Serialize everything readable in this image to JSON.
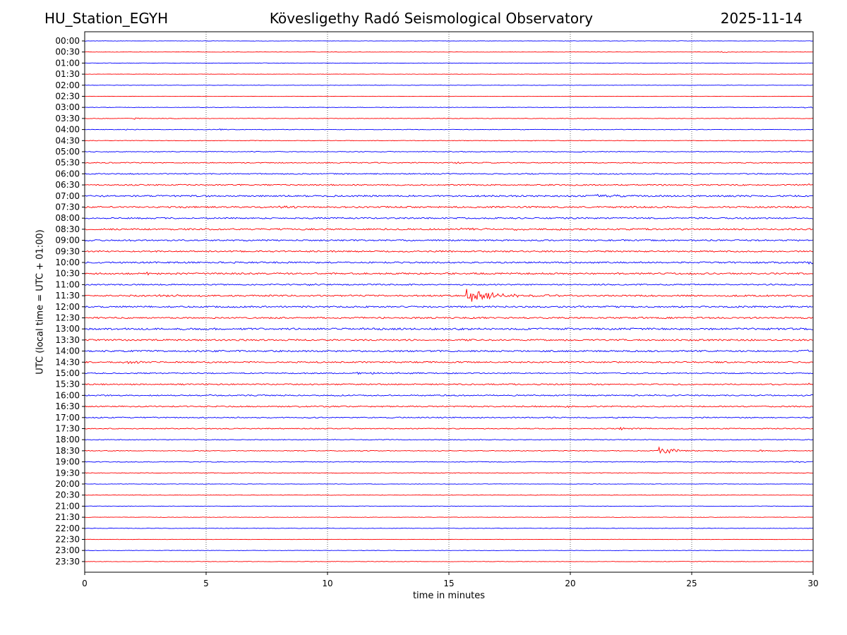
{
  "header": {
    "station": "HU_Station_EGYH",
    "observatory": "Kövesligethy Radó Seismological Observatory",
    "date": "2025-11-14"
  },
  "chart_data": {
    "type": "line",
    "title": "Kövesligethy Radó Seismological Observatory",
    "xlabel": "time in minutes",
    "ylabel": "UTC (local time = UTC + 01:00)",
    "xlim": [
      0,
      30
    ],
    "xticks": [
      0,
      5,
      10,
      15,
      20,
      25,
      30
    ],
    "grid": "vertical dotted at 5-minute ticks",
    "colors": {
      "even_row": "#0000ff",
      "odd_row": "#ff0000",
      "grid": "#000000"
    },
    "rows": [
      {
        "label": "00:00",
        "noise": 0.25,
        "events": []
      },
      {
        "label": "00:30",
        "noise": 0.22,
        "events": [
          {
            "t": 26.2,
            "amp": 1.2,
            "dur": 0.4
          }
        ]
      },
      {
        "label": "01:00",
        "noise": 0.25,
        "events": []
      },
      {
        "label": "01:30",
        "noise": 0.22,
        "events": []
      },
      {
        "label": "02:00",
        "noise": 0.25,
        "events": []
      },
      {
        "label": "02:30",
        "noise": 0.22,
        "events": []
      },
      {
        "label": "03:00",
        "noise": 0.3,
        "events": [
          {
            "t": 29.6,
            "amp": 1.6,
            "dur": 0.5
          }
        ]
      },
      {
        "label": "03:30",
        "noise": 0.35,
        "events": [
          {
            "t": 2.0,
            "amp": 1.4,
            "dur": 0.6
          }
        ]
      },
      {
        "label": "04:00",
        "noise": 0.35,
        "events": [
          {
            "t": 1.6,
            "amp": 1.3,
            "dur": 0.5
          },
          {
            "t": 5.5,
            "amp": 1.0,
            "dur": 0.4
          }
        ]
      },
      {
        "label": "04:30",
        "noise": 0.35,
        "events": []
      },
      {
        "label": "05:00",
        "noise": 0.45,
        "events": [
          {
            "t": 29.0,
            "amp": 1.0,
            "dur": 0.4
          }
        ]
      },
      {
        "label": "05:30",
        "noise": 0.6,
        "events": [
          {
            "t": 15.2,
            "amp": 1.4,
            "dur": 0.5
          }
        ]
      },
      {
        "label": "06:00",
        "noise": 0.7,
        "events": []
      },
      {
        "label": "06:30",
        "noise": 0.8,
        "events": [
          {
            "t": 29.8,
            "amp": 1.5,
            "dur": 0.3
          }
        ]
      },
      {
        "label": "07:00",
        "noise": 1.0,
        "events": [
          {
            "t": 21.0,
            "amp": 1.8,
            "dur": 0.8
          }
        ]
      },
      {
        "label": "07:30",
        "noise": 1.0,
        "events": [
          {
            "t": 7.8,
            "amp": 2.0,
            "dur": 0.6
          }
        ]
      },
      {
        "label": "08:00",
        "noise": 0.9,
        "events": []
      },
      {
        "label": "08:30",
        "noise": 1.0,
        "events": [
          {
            "t": 15.5,
            "amp": 1.6,
            "dur": 2.0
          }
        ]
      },
      {
        "label": "09:00",
        "noise": 0.9,
        "events": []
      },
      {
        "label": "09:30",
        "noise": 0.9,
        "events": []
      },
      {
        "label": "10:00",
        "noise": 1.0,
        "events": [
          {
            "t": 29.8,
            "amp": 1.5,
            "dur": 0.4
          }
        ]
      },
      {
        "label": "10:30",
        "noise": 1.0,
        "events": [
          {
            "t": 2.5,
            "amp": 1.8,
            "dur": 0.5
          }
        ]
      },
      {
        "label": "11:00",
        "noise": 0.8,
        "events": [
          {
            "t": 9.2,
            "amp": 2.0,
            "dur": 0.4
          }
        ]
      },
      {
        "label": "11:30",
        "noise": 1.0,
        "events": [
          {
            "t": 15.7,
            "amp": 9.0,
            "dur": 1.3
          },
          {
            "t": 3.0,
            "amp": 1.4,
            "dur": 1.5
          }
        ]
      },
      {
        "label": "12:00",
        "noise": 1.0,
        "events": []
      },
      {
        "label": "12:30",
        "noise": 1.0,
        "events": []
      },
      {
        "label": "13:00",
        "noise": 1.2,
        "events": [
          {
            "t": 22.3,
            "amp": 1.8,
            "dur": 0.5
          }
        ]
      },
      {
        "label": "13:30",
        "noise": 1.0,
        "events": []
      },
      {
        "label": "14:00",
        "noise": 1.0,
        "events": [
          {
            "t": 29.5,
            "amp": 2.5,
            "dur": 0.6
          }
        ]
      },
      {
        "label": "14:30",
        "noise": 0.9,
        "events": [
          {
            "t": 1.5,
            "amp": 1.5,
            "dur": 1.0
          }
        ]
      },
      {
        "label": "15:00",
        "noise": 0.7,
        "events": [
          {
            "t": 11.0,
            "amp": 1.5,
            "dur": 2.0
          }
        ]
      },
      {
        "label": "15:30",
        "noise": 0.8,
        "events": [
          {
            "t": 29.8,
            "amp": 1.4,
            "dur": 0.3
          }
        ]
      },
      {
        "label": "16:00",
        "noise": 0.8,
        "events": []
      },
      {
        "label": "16:30",
        "noise": 0.8,
        "events": [
          {
            "t": 19.8,
            "amp": 1.4,
            "dur": 0.2
          }
        ]
      },
      {
        "label": "17:00",
        "noise": 0.7,
        "events": []
      },
      {
        "label": "17:30",
        "noise": 0.6,
        "events": [
          {
            "t": 22.0,
            "amp": 1.8,
            "dur": 0.6
          }
        ]
      },
      {
        "label": "18:00",
        "noise": 0.5,
        "events": []
      },
      {
        "label": "18:30",
        "noise": 0.5,
        "events": [
          {
            "t": 23.6,
            "amp": 6.0,
            "dur": 0.7
          },
          {
            "t": 27.8,
            "amp": 1.5,
            "dur": 0.3
          }
        ]
      },
      {
        "label": "19:00",
        "noise": 0.5,
        "events": [
          {
            "t": 29.0,
            "amp": 1.6,
            "dur": 0.5
          },
          {
            "t": 26.6,
            "amp": 1.2,
            "dur": 0.2
          }
        ]
      },
      {
        "label": "19:30",
        "noise": 0.4,
        "events": []
      },
      {
        "label": "20:00",
        "noise": 0.3,
        "events": []
      },
      {
        "label": "20:30",
        "noise": 0.3,
        "events": []
      },
      {
        "label": "21:00",
        "noise": 0.3,
        "events": []
      },
      {
        "label": "21:30",
        "noise": 0.3,
        "events": []
      },
      {
        "label": "22:00",
        "noise": 0.3,
        "events": []
      },
      {
        "label": "22:30",
        "noise": 0.25,
        "events": []
      },
      {
        "label": "23:00",
        "noise": 0.25,
        "events": []
      },
      {
        "label": "23:30",
        "noise": 0.3,
        "events": []
      }
    ]
  }
}
